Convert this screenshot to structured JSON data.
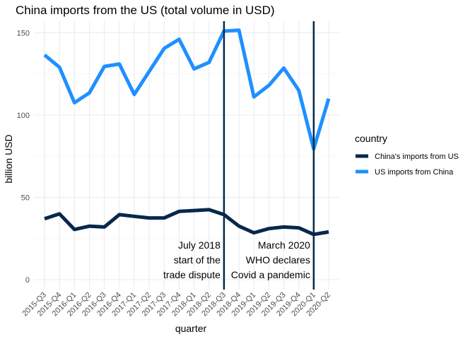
{
  "chart_data": {
    "type": "line",
    "title": "China imports from the US (total volume in USD)",
    "xlabel": "quarter",
    "ylabel": "billion USD",
    "ylim": [
      -6,
      157
    ],
    "yticks": [
      0,
      50,
      100,
      150
    ],
    "grid": true,
    "categories": [
      "2015-Q3",
      "2015-Q4",
      "2016-Q1",
      "2016-Q2",
      "2016-Q3",
      "2016-Q4",
      "2017-Q1",
      "2017-Q2",
      "2017-Q3",
      "2017-Q4",
      "2018-Q1",
      "2018-Q2",
      "2018-Q3",
      "2018-Q4",
      "2019-Q1",
      "2019-Q2",
      "2019-Q3",
      "2019-Q4",
      "2020-Q1",
      "2020-Q2"
    ],
    "series": [
      {
        "name": "China's imports from US",
        "color": "#06284c",
        "values": [
          37.0,
          40.0,
          30.5,
          32.5,
          32.0,
          39.5,
          38.5,
          37.5,
          37.5,
          41.5,
          42.0,
          42.5,
          39.5,
          32.5,
          28.5,
          31.0,
          32.0,
          31.5,
          27.5,
          29.0
        ]
      },
      {
        "name": "US imports from China",
        "color": "#1e90ff",
        "values": [
          136.5,
          129.0,
          107.5,
          113.5,
          129.5,
          131.0,
          112.5,
          126.5,
          140.5,
          146.0,
          128.0,
          132.0,
          151.0,
          151.5,
          111.0,
          118.0,
          128.5,
          115.0,
          79.5,
          110.0
        ]
      }
    ],
    "vlines": [
      {
        "category": "2018-Q3",
        "color": "#06284c"
      },
      {
        "category": "2020-Q1",
        "color": "#06284c"
      }
    ],
    "annotations": [
      {
        "anchor": "2018-Q3",
        "lines": [
          "July 2018",
          "start of the",
          "trade dispute"
        ]
      },
      {
        "anchor": "2020-Q1",
        "lines": [
          "March 2020",
          "WHO declares",
          "Covid a pandemic"
        ]
      }
    ],
    "legend": {
      "title": "country",
      "position": "right",
      "entries": [
        "China's imports from US",
        "US imports from China"
      ]
    }
  }
}
